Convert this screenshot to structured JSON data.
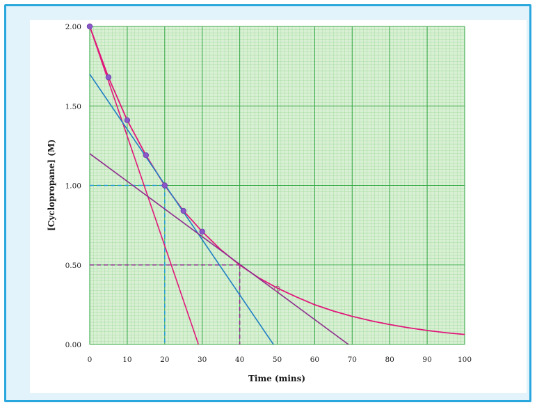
{
  "chart_data": {
    "type": "line",
    "xlabel": "Time (mins)",
    "ylabel": "[Cyclopropane] (M)",
    "xlim": [
      0,
      100
    ],
    "ylim": [
      0,
      2.0
    ],
    "x_ticks": [
      "0",
      "10",
      "20",
      "30",
      "40",
      "50",
      "60",
      "70",
      "80",
      "90",
      "100"
    ],
    "y_ticks": [
      "0.00",
      "0.50",
      "1.00",
      "1.50",
      "2.00"
    ],
    "grid": true,
    "points": [
      {
        "x": 0,
        "y": 2.0
      },
      {
        "x": 5,
        "y": 1.68
      },
      {
        "x": 10,
        "y": 1.41
      },
      {
        "x": 15,
        "y": 1.19
      },
      {
        "x": 20,
        "y": 1.0
      },
      {
        "x": 25,
        "y": 0.84
      },
      {
        "x": 30,
        "y": 0.71
      }
    ],
    "open_points": [
      {
        "x": 50,
        "y": 0.35
      }
    ],
    "series": [
      {
        "kind": "curve",
        "color": "#e0177a",
        "x": [
          0,
          5,
          10,
          15,
          20,
          25,
          30,
          35,
          40,
          45,
          50,
          55,
          60,
          65,
          70,
          75,
          80,
          85,
          90,
          95,
          100
        ],
        "y": [
          2.0,
          1.68,
          1.41,
          1.19,
          1.0,
          0.84,
          0.71,
          0.595,
          0.5,
          0.42,
          0.355,
          0.3,
          0.25,
          0.21,
          0.177,
          0.149,
          0.125,
          0.105,
          0.088,
          0.074,
          0.063
        ]
      },
      {
        "kind": "tangent",
        "color": "#e0177a",
        "x": [
          0,
          29
        ],
        "y": [
          2.0,
          0.0
        ]
      },
      {
        "kind": "tangent",
        "color": "#1f7fc4",
        "x": [
          0,
          49
        ],
        "y": [
          1.7,
          0.0
        ]
      },
      {
        "kind": "tangent",
        "color": "#8e2c8e",
        "x": [
          0,
          69
        ],
        "y": [
          1.2,
          0.0
        ]
      }
    ],
    "guides": [
      {
        "x": 20,
        "y": 1.0,
        "color": "#2a9fd6"
      },
      {
        "x": 40,
        "y": 0.5,
        "color": "#8e2c8e"
      }
    ],
    "colors": {
      "plot_bg": "#d9f0d5",
      "grid_minor": "#a6dca0",
      "grid_major": "#3aaa4a",
      "point": "#8a56c8"
    }
  }
}
